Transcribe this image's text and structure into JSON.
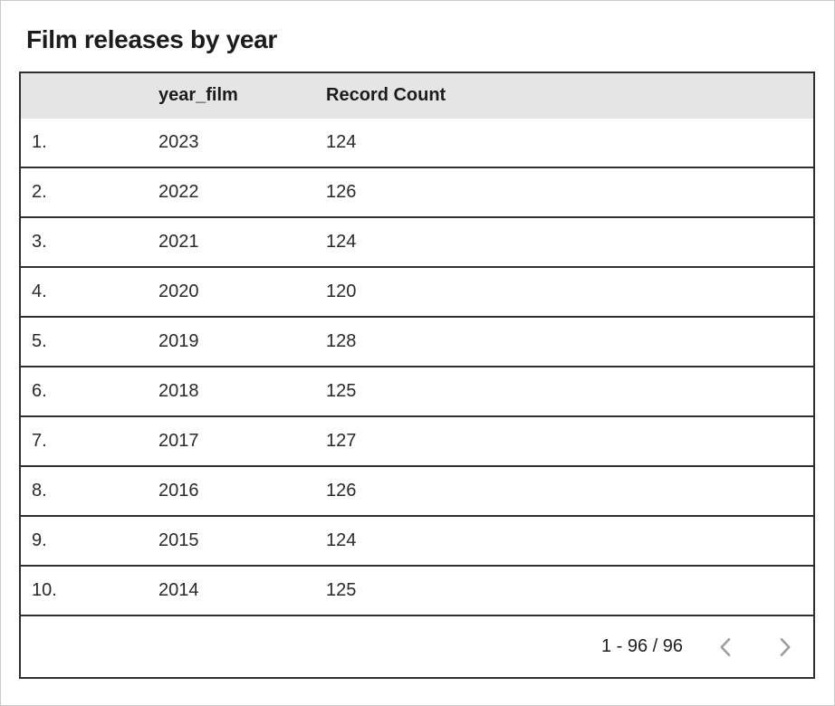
{
  "title": "Film releases by year",
  "table": {
    "header": {
      "index_label": "",
      "year_label": "year_film",
      "count_label": "Record Count"
    },
    "rows": [
      {
        "index": "1.",
        "year": "2023",
        "count": "124"
      },
      {
        "index": "2.",
        "year": "2022",
        "count": "126"
      },
      {
        "index": "3.",
        "year": "2021",
        "count": "124"
      },
      {
        "index": "4.",
        "year": "2020",
        "count": "120"
      },
      {
        "index": "5.",
        "year": "2019",
        "count": "128"
      },
      {
        "index": "6.",
        "year": "2018",
        "count": "125"
      },
      {
        "index": "7.",
        "year": "2017",
        "count": "127"
      },
      {
        "index": "8.",
        "year": "2016",
        "count": "126"
      },
      {
        "index": "9.",
        "year": "2015",
        "count": "124"
      },
      {
        "index": "10.",
        "year": "2014",
        "count": "125"
      }
    ],
    "footer": {
      "range_label": "1 - 96 / 96",
      "prev_icon": "chevron-left",
      "next_icon": "chevron-right"
    }
  },
  "colors": {
    "header_bg": "#e5e5e5",
    "table_border": "#2f2f2f",
    "page_border": "#c9c9c9",
    "text": "#212121",
    "chevron": "#9e9e9e"
  },
  "chart_data": {
    "type": "table",
    "title": "Film releases by year",
    "columns": [
      "year_film",
      "Record Count"
    ],
    "x": [
      2023,
      2022,
      2021,
      2020,
      2019,
      2018,
      2017,
      2016,
      2015,
      2014
    ],
    "values": [
      124,
      126,
      124,
      120,
      128,
      125,
      127,
      126,
      124,
      125
    ],
    "pagination": "1 - 96 / 96"
  }
}
